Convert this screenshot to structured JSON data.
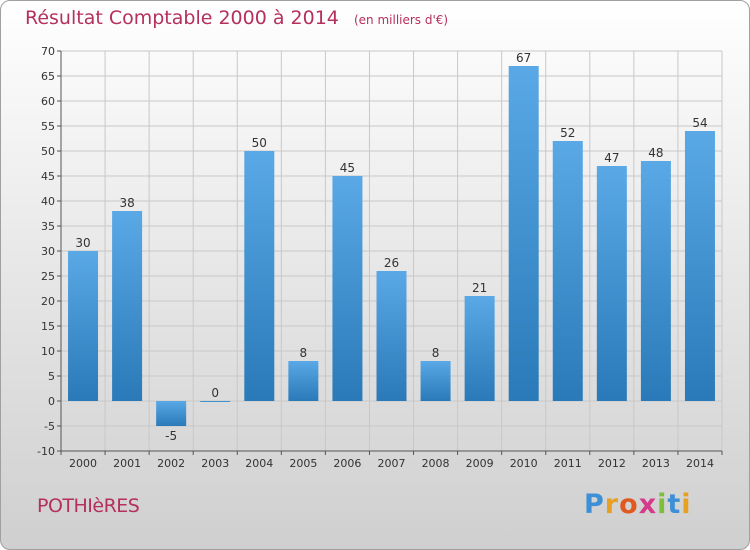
{
  "chart_data": {
    "type": "bar",
    "title": "Résultat Comptable 2000 à 2014",
    "subtitle": "(en milliers d'€)",
    "categories": [
      "2000",
      "2001",
      "2002",
      "2003",
      "2004",
      "2005",
      "2006",
      "2007",
      "2008",
      "2009",
      "2010",
      "2011",
      "2012",
      "2013",
      "2014"
    ],
    "values": [
      30,
      38,
      -5,
      0,
      50,
      8,
      45,
      26,
      8,
      21,
      67,
      52,
      47,
      48,
      54
    ],
    "ylim": [
      -10,
      70
    ],
    "yticks": [
      -10,
      -5,
      0,
      5,
      10,
      15,
      20,
      25,
      30,
      35,
      40,
      45,
      50,
      55,
      60,
      65,
      70
    ],
    "xlabel": "",
    "ylabel": "",
    "grid": true,
    "legend": "none",
    "colors": {
      "bar_light": "#5aa9e6",
      "bar_dark": "#2a79b8",
      "title": "#b5305c",
      "grid": "#c8c8c8"
    }
  },
  "place": {
    "name": "POTHIèRES"
  },
  "brand": {
    "letters": [
      "P",
      "r",
      "o",
      "x",
      "i",
      "t",
      "i"
    ],
    "colors": [
      "#3d8fd6",
      "#e8a020",
      "#e05a20",
      "#d63a8a",
      "#7cbf3a",
      "#3d8fd6",
      "#e8a020"
    ]
  }
}
